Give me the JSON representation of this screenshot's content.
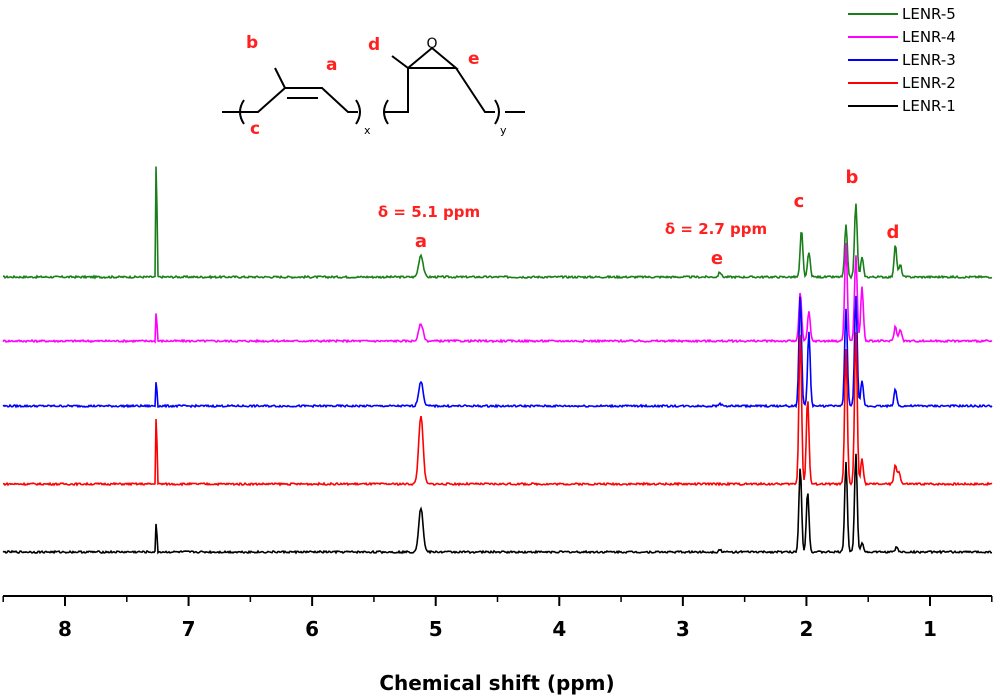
{
  "chart_data": {
    "type": "line",
    "title": "",
    "xlabel": "Chemical shift (ppm)",
    "ylabel": "",
    "xlim": [
      8.5,
      0.5
    ],
    "x_reversed": true,
    "xticks": [
      8,
      7,
      6,
      5,
      4,
      3,
      2,
      1
    ],
    "tick_labels": [
      "8",
      "7",
      "6",
      "5",
      "4",
      "3",
      "2",
      "1"
    ],
    "grid": false,
    "legend_position": "top-right",
    "series": [
      {
        "name": "LENR-5",
        "color": "#1a7f1a",
        "peaks": [
          [
            7.26,
            1.0
          ],
          [
            5.12,
            0.09
          ],
          [
            2.7,
            0.02
          ],
          [
            2.04,
            0.19
          ],
          [
            1.98,
            0.1
          ],
          [
            1.68,
            0.21
          ],
          [
            1.6,
            0.3
          ],
          [
            1.55,
            0.08
          ],
          [
            1.28,
            0.13
          ],
          [
            1.24,
            0.05
          ]
        ]
      },
      {
        "name": "LENR-4",
        "color": "#ff00ff",
        "peaks": [
          [
            7.26,
            0.25
          ],
          [
            5.12,
            0.07
          ],
          [
            2.05,
            0.2
          ],
          [
            1.98,
            0.12
          ],
          [
            1.68,
            0.4
          ],
          [
            1.6,
            0.35
          ],
          [
            1.55,
            0.22
          ],
          [
            1.28,
            0.06
          ],
          [
            1.24,
            0.05
          ]
        ]
      },
      {
        "name": "LENR-3",
        "color": "#0000ff",
        "peaks": [
          [
            7.26,
            0.22
          ],
          [
            5.12,
            0.1
          ],
          [
            2.7,
            0.01
          ],
          [
            2.05,
            0.45
          ],
          [
            1.98,
            0.3
          ],
          [
            1.68,
            0.4
          ],
          [
            1.6,
            0.45
          ],
          [
            1.55,
            0.1
          ],
          [
            1.28,
            0.07
          ]
        ]
      },
      {
        "name": "LENR-2",
        "color": "#ff0000",
        "peaks": [
          [
            7.26,
            0.6
          ],
          [
            5.12,
            0.28
          ],
          [
            2.05,
            0.62
          ],
          [
            1.99,
            0.35
          ],
          [
            1.68,
            0.55
          ],
          [
            1.6,
            0.62
          ],
          [
            1.55,
            0.1
          ],
          [
            1.28,
            0.08
          ],
          [
            1.25,
            0.05
          ]
        ]
      },
      {
        "name": "LENR-1",
        "color": "#000000",
        "peaks": [
          [
            7.26,
            0.25
          ],
          [
            5.12,
            0.18
          ],
          [
            2.7,
            0.01
          ],
          [
            2.05,
            0.35
          ],
          [
            1.99,
            0.25
          ],
          [
            1.68,
            0.37
          ],
          [
            1.6,
            0.4
          ],
          [
            1.55,
            0.04
          ],
          [
            1.27,
            0.02
          ]
        ]
      }
    ],
    "annotations": [
      {
        "text": "δ = 5.1 ppm",
        "x": 5.1
      },
      {
        "text": "δ = 2.7 ppm",
        "x": 2.7
      }
    ],
    "peak_labels": [
      {
        "text": "a",
        "x": 5.12
      },
      {
        "text": "e",
        "x": 2.7
      },
      {
        "text": "c",
        "x": 2.04
      },
      {
        "text": "b",
        "x": 1.6
      },
      {
        "text": "d",
        "x": 1.28
      }
    ]
  },
  "structure": {
    "labels": {
      "a": "a",
      "b": "b",
      "c": "c",
      "d": "d",
      "e": "e"
    },
    "oxygen": "O",
    "sub_x": "x",
    "sub_y": "y"
  }
}
